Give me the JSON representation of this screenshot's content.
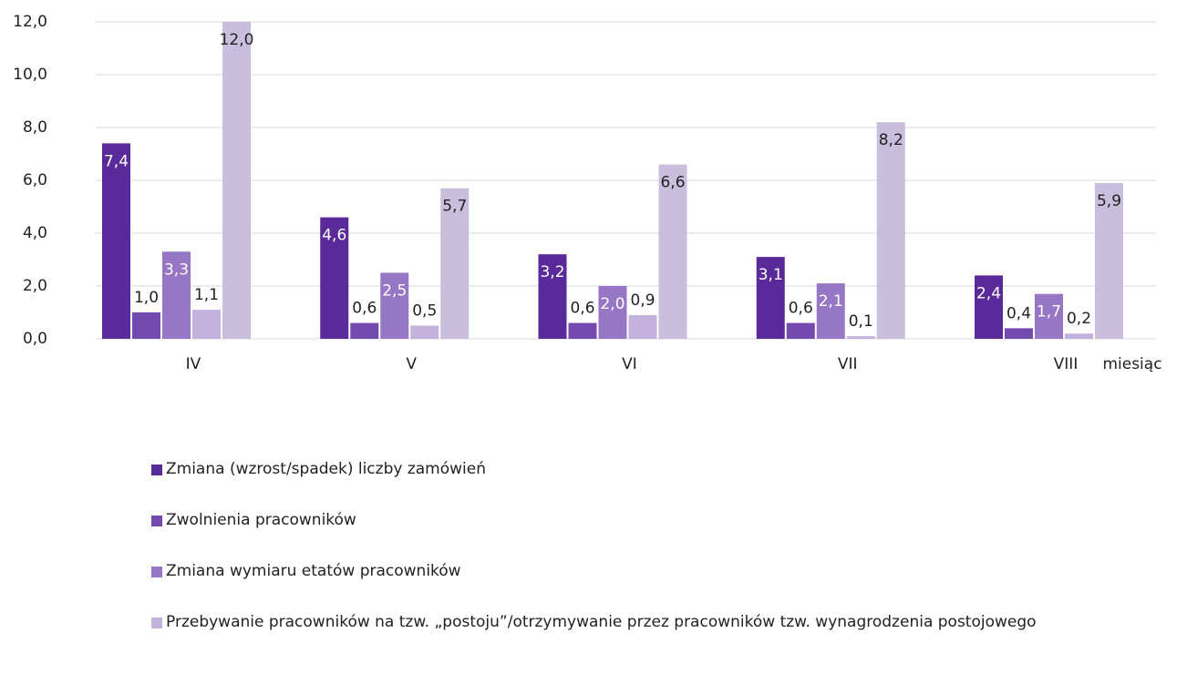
{
  "chart_data": {
    "type": "bar",
    "categories": [
      "IV",
      "V",
      "VI",
      "VII",
      "VIII"
    ],
    "x_label": "miesiąc",
    "series": [
      {
        "name": "Zmiana (wzrost/spadek) liczby zamówień",
        "color": "#5a2a9b",
        "values": [
          7.4,
          4.6,
          3.2,
          3.1,
          2.4
        ],
        "value_labels": [
          "7,4",
          "4,6",
          "3,2",
          "3,1",
          "2,4"
        ]
      },
      {
        "name": "Zwolnienia pracowników",
        "color": "#7449b0",
        "values": [
          1.0,
          0.6,
          0.6,
          0.6,
          0.4
        ],
        "value_labels": [
          "1,0",
          "0,6",
          "0,6",
          "0,6",
          "0,4"
        ]
      },
      {
        "name": "Zmiana wymiaru etatów pracowników",
        "color": "#9676c5",
        "values": [
          3.3,
          2.5,
          2.0,
          2.1,
          1.7
        ],
        "value_labels": [
          "3,3",
          "2,5",
          "2,0",
          "2,1",
          "1,7"
        ]
      },
      {
        "name": "Przebywanie pracowników na tzw. „postoju”/otrzymywanie przez pracowników tzw. wynagrodzenia postojowego",
        "color": "#c2b2dc",
        "values": [
          1.1,
          0.5,
          0.9,
          0.1,
          0.2
        ],
        "value_labels": [
          "1,1",
          "0,5",
          "0,9",
          "0,1",
          "0,2"
        ]
      },
      {
        "color": "#c9bedd",
        "values": [
          12.0,
          5.7,
          6.6,
          8.2,
          5.9
        ],
        "value_labels": [
          "12,0",
          "5,7",
          "6,6",
          "8,2",
          "5,9"
        ]
      }
    ],
    "ylim": [
      0,
      12
    ],
    "yticks": [
      {
        "value": 0,
        "label": "0,0"
      },
      {
        "value": 2,
        "label": "2,0"
      },
      {
        "value": 4,
        "label": "4,0"
      },
      {
        "value": 6,
        "label": "6,0"
      },
      {
        "value": 8,
        "label": "8,0"
      },
      {
        "value": 10,
        "label": "10,0"
      },
      {
        "value": 12,
        "label": "12,0"
      }
    ],
    "grid": true
  }
}
